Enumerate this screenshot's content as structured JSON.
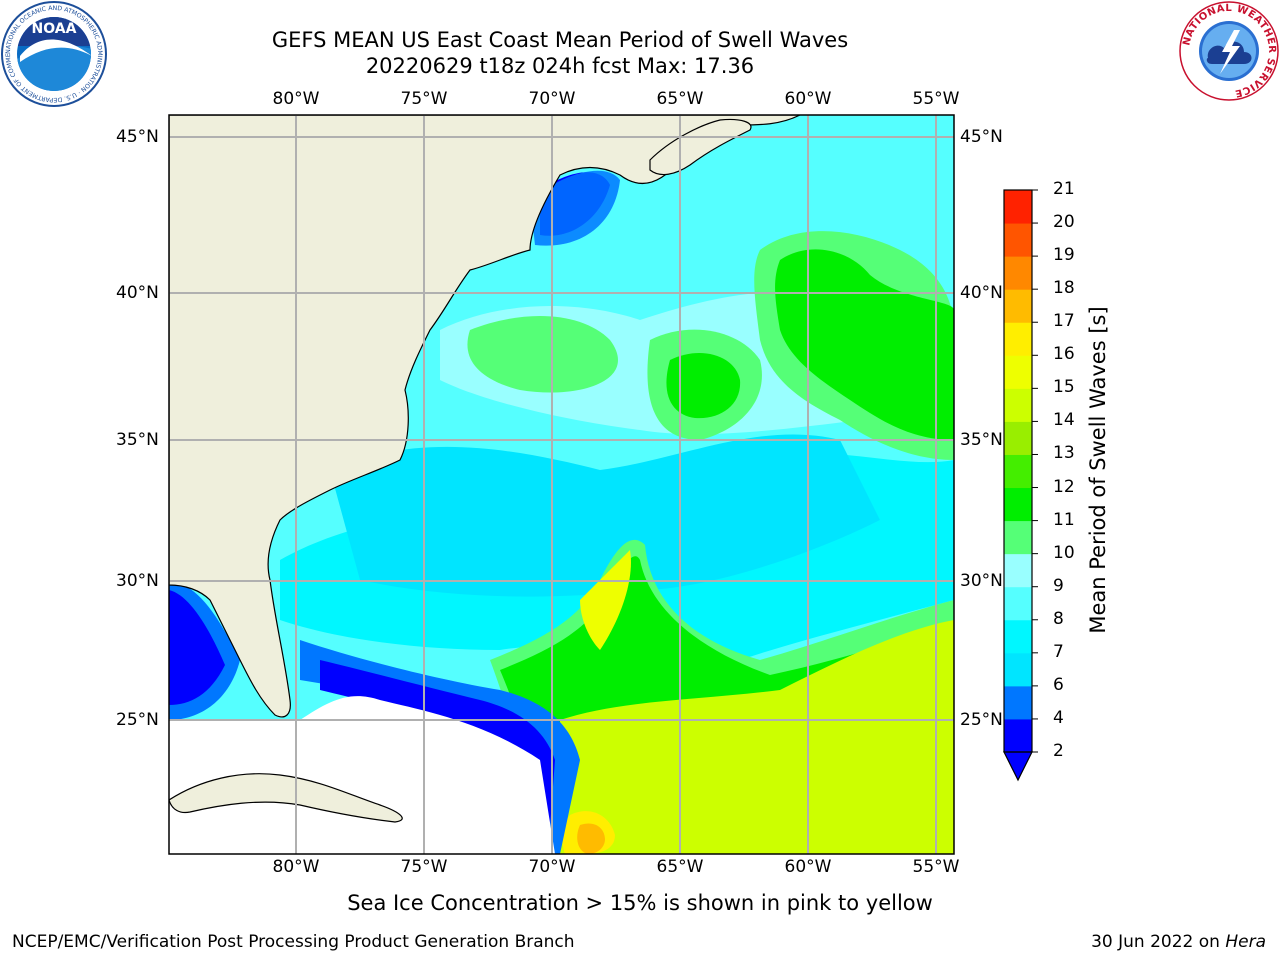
{
  "title_line1": "GEFS MEAN US East Coast Mean Period of Swell Waves",
  "title_line2": "20220629 t18z 024h fcst   Max: 17.36",
  "map": {
    "lon_labels": [
      "80°W",
      "75°W",
      "70°W",
      "65°W",
      "60°W",
      "55°W"
    ],
    "lat_labels": [
      "45°N",
      "40°N",
      "35°N",
      "30°N",
      "25°N"
    ],
    "colors": {
      "land": "#efefdc",
      "no_data": "#ffffff",
      "grid": "#b0b0b0",
      "coast": "#000000"
    }
  },
  "colorbar": {
    "title": "Mean Period of Swell Waves [s]",
    "ticks": [
      "2",
      "4",
      "6",
      "7",
      "8",
      "9",
      "10",
      "11",
      "12",
      "13",
      "14",
      "15",
      "16",
      "17",
      "18",
      "19",
      "20",
      "21"
    ],
    "band_colors": [
      "#0000ff",
      "#0077ff",
      "#00e5ff",
      "#00f7ff",
      "#55ffff",
      "#99ffff",
      "#55ff77",
      "#00ee00",
      "#44ee00",
      "#99ee00",
      "#ccff00",
      "#eeff00",
      "#ffee00",
      "#ffbb00",
      "#ff8800",
      "#ff5500",
      "#ff2200",
      "#ff0000"
    ]
  },
  "caption": "Sea Ice Concentration > 15% is shown in pink to yellow",
  "footer_left": "NCEP/EMC/Verification Post Processing Product Generation Branch",
  "footer_date": "30 Jun 2022 on",
  "footer_machine": "Hera",
  "logos": {
    "noaa": {
      "text": "NOAA",
      "ring_text": "NATIONAL OCEANIC AND ATMOSPHERIC ADMINISTRATION · U.S. DEPARTMENT OF COMMERCE"
    },
    "nws": {
      "ring_text": "NATIONAL WEATHER SERVICE"
    }
  }
}
